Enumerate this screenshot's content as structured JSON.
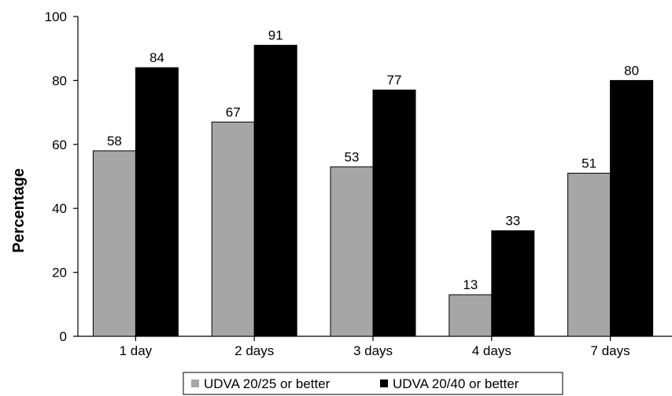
{
  "chart_data": {
    "type": "bar",
    "title": "",
    "xlabel": "",
    "ylabel": "Percentage",
    "ylim": [
      0,
      100
    ],
    "yticks": [
      "0",
      "20",
      "40",
      "60",
      "80",
      "100"
    ],
    "categories": [
      "1 day",
      "2 days",
      "3 days",
      "4 days",
      "7 days"
    ],
    "series": [
      {
        "name": "UDVA 20/25 or better",
        "color": "#a6a6a6",
        "values": [
          58,
          67,
          53,
          13,
          51
        ]
      },
      {
        "name": "UDVA 20/40 or better",
        "color": "#000000",
        "values": [
          84,
          91,
          77,
          33,
          80
        ]
      }
    ],
    "legend_position": "bottom",
    "grid": false
  }
}
